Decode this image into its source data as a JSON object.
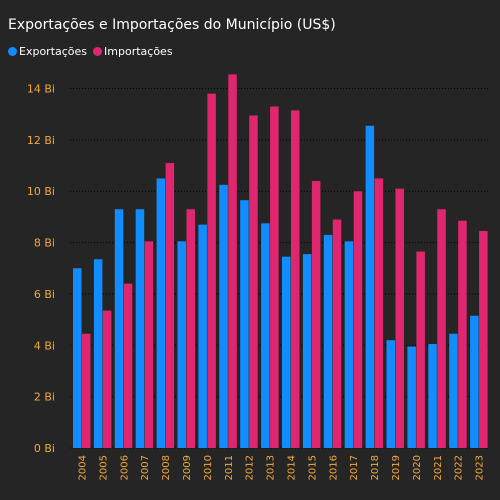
{
  "chart_data": {
    "type": "bar",
    "title": "Exportações e Importações do Município (US$)",
    "categories": [
      "2004",
      "2005",
      "2006",
      "2007",
      "2008",
      "2009",
      "2010",
      "2011",
      "2012",
      "2013",
      "2014",
      "2015",
      "2016",
      "2017",
      "2018",
      "2019",
      "2020",
      "2021",
      "2022",
      "2023"
    ],
    "series": [
      {
        "name": "Exportações",
        "color": "#118DFF",
        "values": [
          7.0,
          7.35,
          9.3,
          9.3,
          10.5,
          8.05,
          8.7,
          10.25,
          9.65,
          8.75,
          7.45,
          7.55,
          8.3,
          8.05,
          12.55,
          4.2,
          3.95,
          4.05,
          4.45,
          5.15
        ]
      },
      {
        "name": "Importações",
        "color": "#E0266F",
        "values": [
          4.45,
          5.35,
          6.4,
          8.05,
          11.1,
          9.3,
          13.8,
          14.55,
          12.95,
          13.3,
          13.15,
          10.4,
          8.9,
          10.0,
          10.5,
          10.1,
          7.65,
          9.3,
          8.85,
          8.45
        ]
      }
    ],
    "y_ticks": [
      {
        "value": 0,
        "label": "0 Bi"
      },
      {
        "value": 2,
        "label": "2 Bi"
      },
      {
        "value": 4,
        "label": "4 Bi"
      },
      {
        "value": 6,
        "label": "6 Bi"
      },
      {
        "value": 8,
        "label": "8 Bi"
      },
      {
        "value": 10,
        "label": "10 Bi"
      },
      {
        "value": 12,
        "label": "12 Bi"
      },
      {
        "value": 14,
        "label": "14 Bi"
      }
    ],
    "ylim": [
      0,
      14.8
    ],
    "grid": true,
    "legend": "top-left",
    "tick_color": "#F2A93B",
    "background": "#252525"
  }
}
